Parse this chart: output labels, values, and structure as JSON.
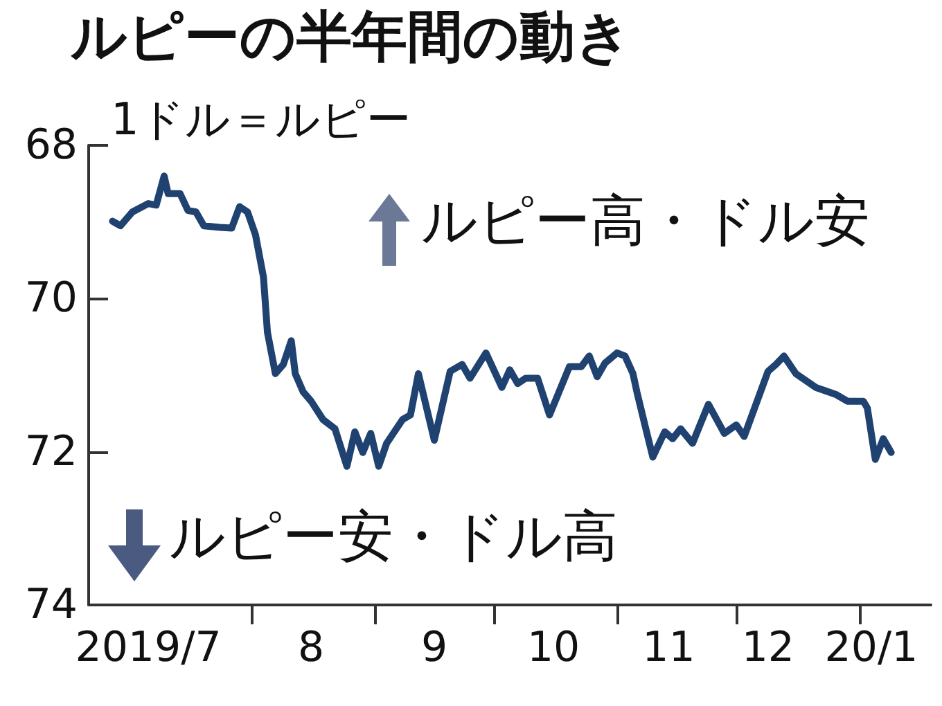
{
  "chart_data": {
    "type": "line",
    "title": "ルピーの半年間の動き",
    "ylabel": "1ドル＝ルピー",
    "annotations": [
      "ルピー高・ドル安",
      "ルピー安・ドル高"
    ],
    "x": [
      "2019-06-27",
      "2019-06-29",
      "2019-07-02",
      "2019-07-06",
      "2019-07-08",
      "2019-07-10",
      "2019-07-11",
      "2019-07-14",
      "2019-07-16",
      "2019-07-18",
      "2019-07-20",
      "2019-07-24",
      "2019-07-27",
      "2019-07-29",
      "2019-07-31",
      "2019-08-02",
      "2019-08-04",
      "2019-08-05",
      "2019-08-07",
      "2019-08-09",
      "2019-08-11",
      "2019-08-12",
      "2019-08-14",
      "2019-08-16",
      "2019-08-19",
      "2019-08-22",
      "2019-08-25",
      "2019-08-27",
      "2019-08-29",
      "2019-08-31",
      "2019-09-02",
      "2019-09-04",
      "2019-09-08",
      "2019-09-10",
      "2019-09-12",
      "2019-09-16",
      "2019-09-20",
      "2019-09-23",
      "2019-09-25",
      "2019-09-29",
      "2019-10-03",
      "2019-10-05",
      "2019-10-07",
      "2019-10-09",
      "2019-10-12",
      "2019-10-15",
      "2019-10-20",
      "2019-10-23",
      "2019-10-25",
      "2019-10-27",
      "2019-10-29",
      "2019-11-01",
      "2019-11-03",
      "2019-11-05",
      "2019-11-06",
      "2019-11-08",
      "2019-11-10",
      "2019-11-13",
      "2019-11-15",
      "2019-11-17",
      "2019-11-20",
      "2019-11-24",
      "2019-11-28",
      "2019-12-01",
      "2019-12-03",
      "2019-12-09",
      "2019-12-11",
      "2019-12-13",
      "2019-12-16",
      "2019-12-21",
      "2019-12-26",
      "2019-12-29",
      "2020-01-02",
      "2020-01-03",
      "2020-01-05",
      "2020-01-07",
      "2020-01-09"
    ],
    "series": [
      {
        "color": "#1f4270",
        "values": [
          68.99,
          69.05,
          68.87,
          68.76,
          68.78,
          68.4,
          68.63,
          68.63,
          68.85,
          68.87,
          69.05,
          69.07,
          69.08,
          68.8,
          68.87,
          69.17,
          69.72,
          70.44,
          70.98,
          70.86,
          70.55,
          70.98,
          71.22,
          71.34,
          71.58,
          71.7,
          72.19,
          71.74,
          72.01,
          71.76,
          72.19,
          71.89,
          71.58,
          71.52,
          70.98,
          71.85,
          70.95,
          70.86,
          71.04,
          70.71,
          71.16,
          70.93,
          71.11,
          71.04,
          71.04,
          71.52,
          70.89,
          70.89,
          70.75,
          71.02,
          70.84,
          70.71,
          70.75,
          70.98,
          71.22,
          71.65,
          72.07,
          71.74,
          71.83,
          71.7,
          71.89,
          71.38,
          71.76,
          71.65,
          71.8,
          70.95,
          70.86,
          70.75,
          70.98,
          71.16,
          71.25,
          71.34,
          71.34,
          71.43,
          72.1,
          71.83,
          72.01
        ]
      }
    ],
    "ylim": [
      74,
      68
    ],
    "yticks": [
      68,
      70,
      72,
      74
    ],
    "xlim": [
      "2019-06-21",
      "2020-01-19"
    ],
    "xticks": [
      {
        "value": "2019-07-06",
        "label": "2019/7"
      },
      {
        "value": "2019-08-01",
        "label": null
      },
      {
        "value": "2019-08-16",
        "label": "8"
      },
      {
        "value": "2019-09-01",
        "label": null
      },
      {
        "value": "2019-09-16",
        "label": "9"
      },
      {
        "value": "2019-10-01",
        "label": null
      },
      {
        "value": "2019-10-16",
        "label": "10"
      },
      {
        "value": "2019-11-01",
        "label": null
      },
      {
        "value": "2019-11-14",
        "label": "11"
      },
      {
        "value": "2019-12-01",
        "label": null
      },
      {
        "value": "2019-12-09",
        "label": "12"
      },
      {
        "value": "2020-01-01",
        "label": null
      },
      {
        "value": "2020-01-04",
        "label": "20/1"
      }
    ],
    "marker": "none",
    "line_style": "solid"
  }
}
